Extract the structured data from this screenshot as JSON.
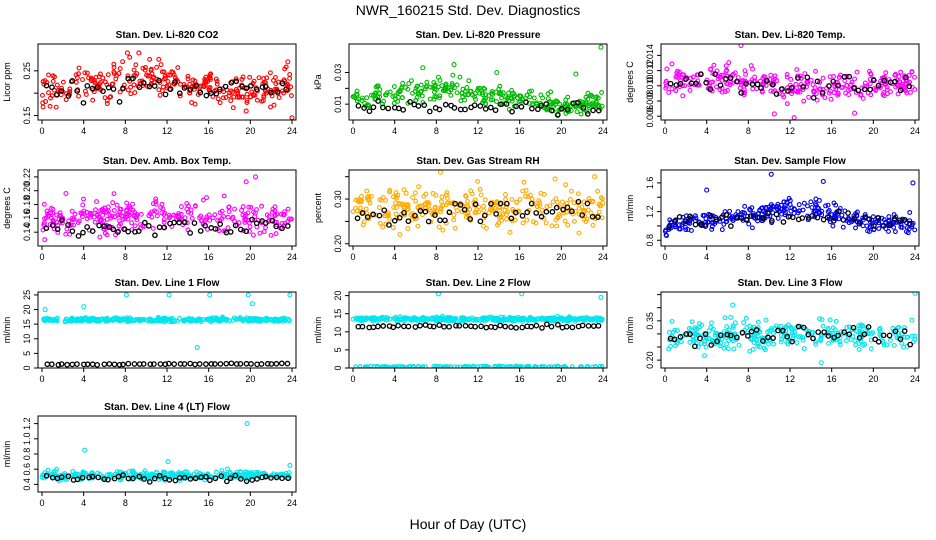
{
  "title": "NWR_160215  Std. Dev. Diagnostics",
  "xlabel": "Hour of Day (UTC)",
  "chart_data": [
    {
      "type": "scatter",
      "title": "Stan. Dev. Li-820 CO2",
      "ylabel": "Licor ppm",
      "color": "#ff0000",
      "xlim": [
        0,
        24
      ],
      "xticks": [
        0,
        4,
        8,
        12,
        16,
        20,
        24
      ],
      "ylim": [
        0.14,
        0.31
      ],
      "yticks": [
        0.15,
        0.2,
        0.25
      ],
      "ytick_labels": [
        "0.15",
        "",
        "0.25"
      ],
      "main": {
        "trend": [
          [
            0,
            0.21
          ],
          [
            6,
            0.22
          ],
          [
            10,
            0.235
          ],
          [
            14,
            0.22
          ],
          [
            18,
            0.21
          ],
          [
            24,
            0.215
          ]
        ],
        "spread": 0.035
      },
      "overlay": {
        "trend": [
          [
            0,
            0.205
          ],
          [
            12,
            0.215
          ],
          [
            24,
            0.21
          ]
        ],
        "spread": 0.02
      },
      "outliers": [
        [
          8.2,
          0.29
        ],
        [
          9.3,
          0.29
        ],
        [
          19.6,
          0.16
        ],
        [
          23.6,
          0.27
        ],
        [
          24,
          0.145
        ]
      ]
    },
    {
      "type": "scatter",
      "title": "Stan. Dev. Li-820 Pressure",
      "ylabel": "kPa",
      "color": "#00bb00",
      "xlim": [
        0,
        24
      ],
      "xticks": [
        0,
        4,
        8,
        12,
        16,
        20,
        24
      ],
      "ylim": [
        0.0,
        0.048
      ],
      "yticks": [
        0.01,
        0.02,
        0.03
      ],
      "ytick_labels": [
        "0.01",
        "",
        "0.03"
      ],
      "main": {
        "trend": [
          [
            0,
            0.013
          ],
          [
            6,
            0.017
          ],
          [
            9,
            0.021
          ],
          [
            12,
            0.016
          ],
          [
            16,
            0.013
          ],
          [
            20,
            0.009
          ],
          [
            24,
            0.012
          ]
        ],
        "spread": 0.006
      },
      "overlay": {
        "trend": [
          [
            0,
            0.008
          ],
          [
            12,
            0.008
          ],
          [
            24,
            0.007
          ]
        ],
        "spread": 0.003
      },
      "outliers": [
        [
          6.7,
          0.033
        ],
        [
          8.2,
          0.027
        ],
        [
          9.7,
          0.035
        ],
        [
          13.8,
          0.03
        ],
        [
          21.4,
          0.029
        ],
        [
          23.8,
          0.046
        ]
      ]
    },
    {
      "type": "scatter",
      "title": "Stan. Dev. Li-820 Temp.",
      "ylabel": "degrees C",
      "color": "#ff00ff",
      "xlim": [
        0,
        24
      ],
      "xticks": [
        0,
        4,
        8,
        12,
        16,
        20,
        24
      ],
      "ylim": [
        0.0055,
        0.0155
      ],
      "yticks": [
        0.006,
        0.008,
        0.01,
        0.012,
        0.014
      ],
      "ytick_labels": [
        "0.006",
        "0.008",
        "0.010",
        "0.012",
        "0.014"
      ],
      "main": {
        "trend": [
          [
            0,
            0.0105
          ],
          [
            6,
            0.011
          ],
          [
            12,
            0.0098
          ],
          [
            18,
            0.0102
          ],
          [
            24,
            0.0104
          ]
        ],
        "spread": 0.0017
      },
      "overlay": {
        "trend": [
          [
            0,
            0.0108
          ],
          [
            12,
            0.0098
          ],
          [
            24,
            0.0105
          ]
        ],
        "spread": 0.0012
      },
      "outliers": [
        [
          7.3,
          0.0153
        ],
        [
          12.4,
          0.0058
        ],
        [
          10.5,
          0.0063
        ],
        [
          18.2,
          0.0064
        ]
      ]
    },
    {
      "type": "scatter",
      "title": "Stan. Dev. Amb. Box Temp.",
      "ylabel": "degrees C",
      "color": "#ff00ff",
      "xlim": [
        0,
        24
      ],
      "xticks": [
        0,
        4,
        8,
        12,
        16,
        20,
        24
      ],
      "ylim": [
        0.12,
        0.23
      ],
      "yticks": [
        0.14,
        0.16,
        0.18,
        0.2,
        0.22
      ],
      "ytick_labels": [
        "0.14",
        "0.16",
        "0.18",
        "0.20",
        "0.22"
      ],
      "main": {
        "trend": [
          [
            0,
            0.155
          ],
          [
            8,
            0.165
          ],
          [
            14,
            0.165
          ],
          [
            20,
            0.16
          ],
          [
            24,
            0.155
          ]
        ],
        "spread": 0.02
      },
      "overlay": {
        "trend": [
          [
            0,
            0.147
          ],
          [
            12,
            0.15
          ],
          [
            24,
            0.148
          ]
        ],
        "spread": 0.01
      },
      "outliers": [
        [
          2.3,
          0.196
        ],
        [
          19.6,
          0.213
        ],
        [
          20.5,
          0.22
        ]
      ]
    },
    {
      "type": "scatter",
      "title": "Stan. Dev. Gas Stream RH",
      "ylabel": "percent",
      "color": "#ffaa00",
      "xlim": [
        0,
        24
      ],
      "xticks": [
        0,
        4,
        8,
        12,
        16,
        20,
        24
      ],
      "ylim": [
        0.195,
        0.365
      ],
      "yticks": [
        0.2,
        0.25,
        0.3,
        0.35
      ],
      "ytick_labels": [
        "0.20",
        "",
        "0.30",
        ""
      ],
      "main": {
        "trend": [
          [
            0,
            0.275
          ],
          [
            8,
            0.28
          ],
          [
            16,
            0.275
          ],
          [
            24,
            0.28
          ]
        ],
        "spread": 0.04
      },
      "overlay": {
        "trend": [
          [
            0,
            0.265
          ],
          [
            12,
            0.27
          ],
          [
            24,
            0.275
          ]
        ],
        "spread": 0.02
      },
      "outliers": [
        [
          8.4,
          0.36
        ],
        [
          19.4,
          0.345
        ],
        [
          23.2,
          0.35
        ]
      ]
    },
    {
      "type": "scatter",
      "title": "Stan. Dev. Sample Flow",
      "ylabel": "ml/min",
      "color": "#0000ee",
      "xlim": [
        0,
        24
      ],
      "xticks": [
        0,
        4,
        8,
        12,
        16,
        20,
        24
      ],
      "ylim": [
        0.72,
        1.78
      ],
      "yticks": [
        0.8,
        1.0,
        1.2,
        1.4,
        1.6
      ],
      "ytick_labels": [
        "0.8",
        "",
        "1.2",
        "",
        "1.6"
      ],
      "main": {
        "trend": [
          [
            0,
            1.0
          ],
          [
            5,
            1.08
          ],
          [
            10,
            1.2
          ],
          [
            14,
            1.25
          ],
          [
            17,
            1.15
          ],
          [
            20,
            1.05
          ],
          [
            24,
            1.02
          ]
        ],
        "spread": 0.13
      },
      "overlay": {
        "trend": [
          [
            0,
            1.05
          ],
          [
            12,
            1.12
          ],
          [
            24,
            1.05
          ]
        ],
        "spread": 0.07
      },
      "outliers": [
        [
          10.2,
          1.72
        ],
        [
          15.2,
          1.62
        ],
        [
          23.8,
          1.6
        ],
        [
          4.0,
          1.5
        ]
      ]
    },
    {
      "type": "scatter",
      "title": "Stan. Dev. Line 1 Flow",
      "ylabel": "ml/min",
      "color": "#00e5ee",
      "xlim": [
        0,
        24
      ],
      "xticks": [
        0,
        4,
        8,
        12,
        16,
        20,
        24
      ],
      "ylim": [
        0,
        26
      ],
      "yticks": [
        0,
        5,
        10,
        15,
        20,
        25
      ],
      "ytick_labels": [
        "0",
        "5",
        "10",
        "15",
        "20",
        "25"
      ],
      "main": {
        "trend": [
          [
            0,
            16.5
          ],
          [
            24,
            16.5
          ]
        ],
        "spread": 0.6
      },
      "overlay": {
        "trend": [
          [
            0,
            1.2
          ],
          [
            24,
            1.5
          ]
        ],
        "spread": 0.15
      },
      "outliers": [
        [
          4.0,
          21
        ],
        [
          8.1,
          25
        ],
        [
          12.2,
          25
        ],
        [
          14.9,
          7
        ],
        [
          16.1,
          25
        ],
        [
          19.8,
          25
        ],
        [
          20.2,
          22
        ],
        [
          23.8,
          25
        ],
        [
          0.3,
          20
        ]
      ]
    },
    {
      "type": "scatter",
      "title": "Stan. Dev. Line 2 Flow",
      "ylabel": "ml/min",
      "color": "#00e5ee",
      "xlim": [
        0,
        24
      ],
      "xticks": [
        0,
        4,
        8,
        12,
        16,
        20,
        24
      ],
      "ylim": [
        0,
        21
      ],
      "yticks": [
        0,
        5,
        10,
        15,
        20
      ],
      "ytick_labels": [
        "0",
        "5",
        "10",
        "15",
        "20"
      ],
      "main": {
        "trend": [
          [
            0,
            13.5
          ],
          [
            24,
            13.5
          ]
        ],
        "spread": 0.5
      },
      "overlay": {
        "trend": [
          [
            0,
            11.5
          ],
          [
            24,
            11.5
          ]
        ],
        "spread": 0.4
      },
      "baseline": {
        "trend": [
          [
            0,
            0.4
          ],
          [
            24,
            0.4
          ]
        ],
        "spread": 0.1
      },
      "outliers": [
        [
          8.2,
          20.5
        ],
        [
          16.2,
          20.5
        ],
        [
          23.8,
          19.5
        ]
      ]
    },
    {
      "type": "scatter",
      "title": "Stan. Dev. Line 3 Flow",
      "ylabel": "ml/min",
      "color": "#00e5ee",
      "xlim": [
        0,
        24
      ],
      "xticks": [
        0,
        4,
        8,
        12,
        16,
        20,
        24
      ],
      "ylim": [
        0.17,
        0.46
      ],
      "yticks": [
        0.2,
        0.25,
        0.3,
        0.35,
        0.4,
        0.45
      ],
      "ytick_labels": [
        "0.20",
        "",
        "",
        "0.35",
        "",
        ""
      ],
      "main": {
        "trend": [
          [
            0,
            0.29
          ],
          [
            12,
            0.3
          ],
          [
            24,
            0.29
          ]
        ],
        "spread": 0.05
      },
      "overlay": {
        "trend": [
          [
            0,
            0.29
          ],
          [
            12,
            0.3
          ],
          [
            24,
            0.29
          ]
        ],
        "spread": 0.03
      },
      "outliers": [
        [
          24,
          0.455
        ],
        [
          15,
          0.19
        ],
        [
          6.5,
          0.41
        ]
      ]
    },
    {
      "type": "scatter",
      "title": "Stan. Dev. Line 4 (LT) Flow",
      "ylabel": "ml/min",
      "color": "#00e5ee",
      "xlim": [
        0,
        24
      ],
      "xticks": [
        0,
        4,
        8,
        12,
        16,
        20,
        24
      ],
      "ylim": [
        0.3,
        1.3
      ],
      "yticks": [
        0.4,
        0.6,
        0.8,
        1.0,
        1.2
      ],
      "ytick_labels": [
        "0.4",
        "0.6",
        "0.8",
        "1.0",
        "1.2"
      ],
      "main": {
        "trend": [
          [
            0,
            0.52
          ],
          [
            24,
            0.52
          ]
        ],
        "spread": 0.05
      },
      "overlay": {
        "trend": [
          [
            0,
            0.48
          ],
          [
            24,
            0.48
          ]
        ],
        "spread": 0.04
      },
      "outliers": [
        [
          4.1,
          0.85
        ],
        [
          19.7,
          1.2
        ],
        [
          23.8,
          0.65
        ],
        [
          12.1,
          0.7
        ]
      ]
    }
  ]
}
